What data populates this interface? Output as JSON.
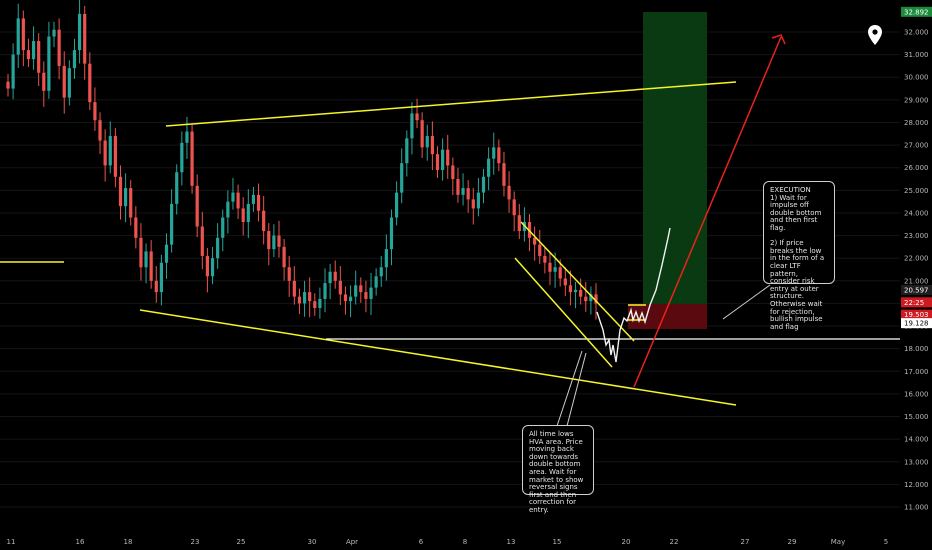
{
  "chart_data": {
    "type": "candlestick",
    "symbol_icon": "map-pin-icon",
    "x_ticks": [
      "11",
      "16",
      "18",
      "23",
      "25",
      "30",
      "Apr",
      "6",
      "8",
      "13",
      "15",
      "20",
      "22",
      "27",
      "29",
      "May",
      "5"
    ],
    "y_ticks": [
      "11.000",
      "12.000",
      "13.000",
      "14.000",
      "15.000",
      "16.000",
      "17.000",
      "18.000",
      "19.000",
      "20.000",
      "21.000",
      "22.000",
      "23.000",
      "24.000",
      "25.000",
      "26.000",
      "27.000",
      "28.000",
      "29.000",
      "30.000",
      "31.000",
      "32.000"
    ],
    "ylim": [
      10.6,
      33.2
    ],
    "price_labels": [
      {
        "text": "32.892",
        "value": 32.892,
        "color": "#1b8a3a"
      },
      {
        "text": "20.597",
        "value": 20.597,
        "color": "#1e1e1e"
      },
      {
        "text": "22:25",
        "value": 20.05,
        "color": "#d01a22"
      },
      {
        "text": "19.503",
        "value": 19.503,
        "color": "#d01a22"
      },
      {
        "text": "19.128",
        "value": 19.128,
        "color": "#ffffff"
      }
    ],
    "trade": {
      "entry": 20.597,
      "stop": 19.503,
      "target": 32.892
    },
    "support_level": 19.128,
    "series_close": [
      29.5,
      31.0,
      32.6,
      31.2,
      30.8,
      31.6,
      30.2,
      29.4,
      31.8,
      32.1,
      30.5,
      29.1,
      30.4,
      31.2,
      32.8,
      30.6,
      28.9,
      28.1,
      27.2,
      26.1,
      27.4,
      25.6,
      24.3,
      25.1,
      23.8,
      22.9,
      21.6,
      22.3,
      21.0,
      20.5,
      21.8,
      22.6,
      24.4,
      25.8,
      27.1,
      27.6,
      25.2,
      23.4,
      22.1,
      21.2,
      22.0,
      22.9,
      23.8,
      24.5,
      24.9,
      24.2,
      23.6,
      24.4,
      24.8,
      24.1,
      23.2,
      22.4,
      23.0,
      22.5,
      21.6,
      21.0,
      20.3,
      20.0,
      20.5,
      20.1,
      19.8,
      20.2,
      20.9,
      21.4,
      21.0,
      20.4,
      20.1,
      20.3,
      20.8,
      20.5,
      20.2,
      20.7,
      21.2,
      21.6,
      22.4,
      23.8,
      24.9,
      26.2,
      27.3,
      28.4,
      28.1,
      26.9,
      27.4,
      26.6,
      25.9,
      26.8,
      26.1,
      25.5,
      24.8,
      25.1,
      24.6,
      24.2,
      24.9,
      25.6,
      26.4,
      26.9,
      26.2,
      25.2,
      24.6,
      23.9,
      23.2,
      23.6,
      22.9,
      22.6,
      22.1,
      21.8,
      21.4,
      21.6,
      21.1,
      20.8,
      20.5,
      20.6,
      20.3,
      20.1,
      20.4,
      20.0
    ],
    "annotations": {
      "execution_note": "EXECUTION\n1) Wait for impulse off double bottom and then first flag.\n\n2) If price breaks the low in the form of a clear LTF pattern, consider risk entry at outer structure. Otherwise wait for rejection, bullish impulse and flag",
      "hva_note": "All time lows HVA area. Price moving back down towards double bottom area. Wait for market to show reversal signs first and then correction for entry."
    }
  },
  "colors": {
    "background": "#000000",
    "up": "#26a69a",
    "down": "#ef5350",
    "trend_line": "#f5f52a",
    "arrow": "#e8231c",
    "grid": "#141414",
    "axis_text": "#b8b8b8"
  }
}
